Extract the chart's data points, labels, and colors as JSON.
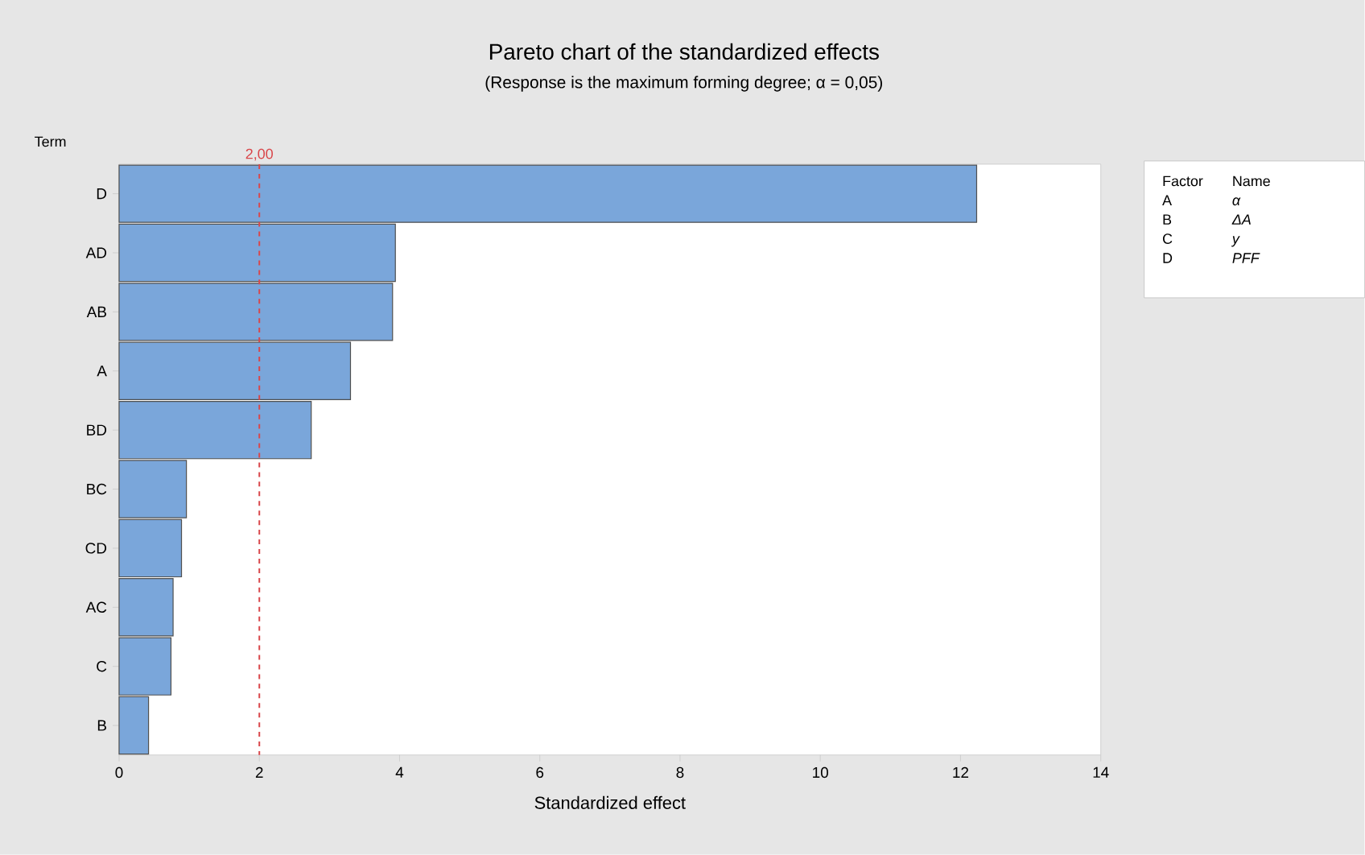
{
  "chart_data": {
    "type": "bar",
    "orientation": "horizontal",
    "title": "Pareto chart of the standardized effects",
    "subtitle": "(Response is the maximum forming degree; α = 0,05)",
    "xlabel": "Standardized effect",
    "ylabel": "Term",
    "categories": [
      "D",
      "AD",
      "AB",
      "A",
      "BD",
      "BC",
      "CD",
      "AC",
      "C",
      "B"
    ],
    "values": [
      12.23,
      3.94,
      3.9,
      3.3,
      2.74,
      0.96,
      0.89,
      0.77,
      0.74,
      0.42
    ],
    "color": "#7aa6da",
    "xlim": [
      0,
      14
    ],
    "xticks": [
      0,
      2,
      4,
      6,
      8,
      10,
      12,
      14
    ],
    "ref_lines": [
      {
        "axis": "x",
        "value": 2,
        "label": "2,00",
        "color": "#d9464a",
        "line_style": "dashed"
      }
    ],
    "annotations": [
      "Factor",
      "Name",
      "A",
      "α",
      "B",
      "ΔA",
      "C",
      "y",
      "D",
      "PFF"
    ],
    "grid": false
  }
}
